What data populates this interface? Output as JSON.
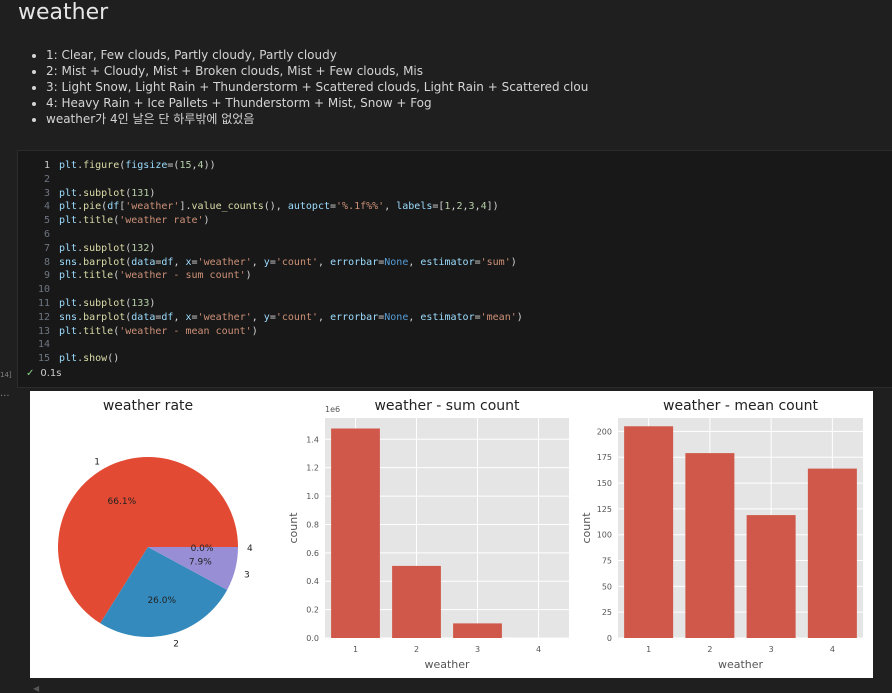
{
  "markdown": {
    "heading": "weather",
    "bullets": [
      "1: Clear, Few clouds, Partly cloudy, Partly cloudy",
      "2: Mist + Cloudy, Mist + Broken clouds, Mist + Few clouds, Mis",
      "3: Light Snow, Light Rain + Thunderstorm + Scattered clouds, Light Rain + Scattered clou",
      "4: Heavy Rain + Ice Pallets + Thunderstorm + Mist, Snow + Fog",
      "weather가 4인 날은 단 하루밖에 없었음"
    ]
  },
  "cell": {
    "line_numbers": [
      "1",
      "2",
      "3",
      "4",
      "5",
      "6",
      "7",
      "8",
      "9",
      "10",
      "11",
      "12",
      "13",
      "14",
      "15"
    ],
    "exec_count": "14]",
    "status": "0.1s",
    "output_marker": "..."
  },
  "charts": {
    "chart_data": [
      {
        "type": "pie",
        "title": "weather rate",
        "labels": [
          "1",
          "2",
          "3",
          "4"
        ],
        "pct_labels": [
          "66.1%",
          "26.0%",
          "7.9%",
          "0.0%"
        ],
        "values": [
          66.1,
          26.0,
          7.9,
          0.0
        ],
        "colors": [
          "#e24a33",
          "#348abd",
          "#988ed5",
          "#777777"
        ]
      },
      {
        "type": "bar",
        "title": "weather - sum count",
        "xlabel": "weather",
        "ylabel": "count",
        "offset_label": "1e6",
        "categories": [
          "1",
          "2",
          "3",
          "4"
        ],
        "values": [
          1.476,
          0.508,
          0.103,
          0.0002
        ],
        "ylim": [
          0,
          1.55
        ],
        "yticks": [
          0.0,
          0.2,
          0.4,
          0.6,
          0.8,
          1.0,
          1.2,
          1.4
        ],
        "ytick_labels": [
          "0.0",
          "0.2",
          "0.4",
          "0.6",
          "0.8",
          "1.0",
          "1.2",
          "1.4"
        ],
        "bar_color": "#d0584a"
      },
      {
        "type": "bar",
        "title": "weather - mean count",
        "xlabel": "weather",
        "ylabel": "count",
        "categories": [
          "1",
          "2",
          "3",
          "4"
        ],
        "values": [
          205,
          179,
          119,
          164
        ],
        "ylim": [
          0,
          213
        ],
        "yticks": [
          0,
          25,
          50,
          75,
          100,
          125,
          150,
          175,
          200
        ],
        "ytick_labels": [
          "0",
          "25",
          "50",
          "75",
          "100",
          "125",
          "150",
          "175",
          "200"
        ],
        "bar_color": "#d0584a"
      }
    ]
  }
}
